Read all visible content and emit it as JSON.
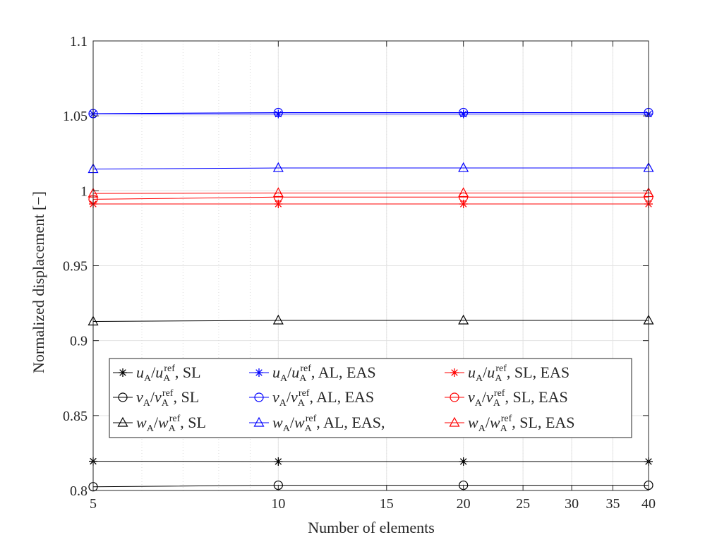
{
  "chart_data": {
    "type": "line",
    "title": "",
    "xlabel": "Number of elements",
    "ylabel": "Normalized displacement [−]",
    "xscale": "log",
    "xlim": [
      5,
      40
    ],
    "ylim": [
      0.8,
      1.1
    ],
    "grid": true,
    "legend_position": "lower-center",
    "x": [
      5,
      10,
      20,
      40
    ],
    "x_ticks": [
      5,
      10,
      15,
      20,
      25,
      30,
      35,
      40
    ],
    "y_ticks": [
      0.8,
      0.85,
      0.9,
      0.95,
      1,
      1.05,
      1.1
    ],
    "y_tick_labels": [
      "0.8",
      "0.85",
      "0.9",
      "0.95",
      "1",
      "1.05",
      "1.1"
    ],
    "series": [
      {
        "id": "u-sl",
        "color": "#000000",
        "marker": "star",
        "values": [
          0.8195,
          0.8193,
          0.8193,
          0.8193
        ],
        "legend": {
          "sym": "u",
          "ratio": "/",
          "cols": "",
          "suffix": "SL"
        }
      },
      {
        "id": "v-sl",
        "color": "#000000",
        "marker": "circle",
        "values": [
          0.8025,
          0.8035,
          0.8035,
          0.8035
        ],
        "legend": {
          "sym": "v",
          "ratio": "/",
          "cols": "",
          "suffix": "SL"
        }
      },
      {
        "id": "w-sl",
        "color": "#000000",
        "marker": "triangle",
        "values": [
          0.9128,
          0.9135,
          0.9135,
          0.9135
        ],
        "legend": {
          "sym": "w",
          "ratio": "/",
          "cols": "",
          "suffix": "SL"
        }
      },
      {
        "id": "u-al-eas",
        "color": "#0000ff",
        "marker": "star",
        "values": [
          1.0513,
          1.0512,
          1.0512,
          1.0512
        ],
        "legend": {
          "sym": "u",
          "ratio": "/",
          "cols": "",
          "suffix": "AL, EAS"
        }
      },
      {
        "id": "v-al-eas",
        "color": "#0000ff",
        "marker": "circle",
        "values": [
          1.0515,
          1.0522,
          1.0522,
          1.0522
        ],
        "legend": {
          "sym": "v",
          "ratio": "/",
          "cols": "",
          "suffix": "AL, EAS"
        }
      },
      {
        "id": "w-al-eas",
        "color": "#0000ff",
        "marker": "triangle",
        "values": [
          1.0145,
          1.0152,
          1.0152,
          1.0152
        ],
        "legend": {
          "sym": "w",
          "ratio": "/",
          "cols": "",
          "suffix": "AL, EAS,"
        }
      },
      {
        "id": "u-sl-eas",
        "color": "#ff0000",
        "marker": "star",
        "values": [
          0.9912,
          0.9912,
          0.9912,
          0.9912
        ],
        "legend": {
          "sym": "u",
          "ratio": "/",
          "cols": "",
          "suffix": "SL, EAS"
        }
      },
      {
        "id": "v-sl-eas",
        "color": "#ff0000",
        "marker": "circle",
        "values": [
          0.9943,
          0.9958,
          0.9958,
          0.9958
        ],
        "legend": {
          "sym": "v",
          "ratio": "/",
          "cols": "",
          "suffix": "SL, EAS"
        }
      },
      {
        "id": "w-sl-eas",
        "color": "#ff0000",
        "marker": "triangle",
        "values": [
          0.9982,
          0.9985,
          0.9985,
          0.9985
        ],
        "legend": {
          "sym": "w",
          "ratio": "/",
          "cols": "",
          "suffix": "SL, EAS"
        }
      }
    ],
    "legend_text": {
      "subscript": "A",
      "superscript": "ref",
      "separator": ","
    }
  }
}
